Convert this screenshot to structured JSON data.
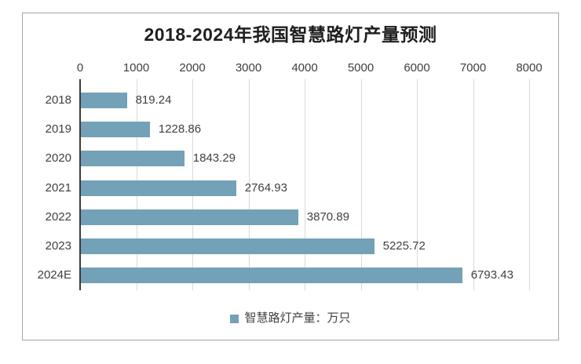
{
  "chart_data": {
    "type": "bar",
    "orientation": "horizontal",
    "title": "2018-2024年我国智慧路灯产量预测",
    "categories": [
      "2018",
      "2019",
      "2020",
      "2021",
      "2022",
      "2023",
      "2024E"
    ],
    "values": [
      819.24,
      1228.86,
      1843.29,
      2764.93,
      3870.89,
      5225.72,
      6793.43
    ],
    "value_labels": [
      "819.24",
      "1228.86",
      "1843.29",
      "2764.93",
      "3870.89",
      "5225.72",
      "6793.43"
    ],
    "xlabel": "",
    "ylabel": "",
    "xlim": [
      0,
      8000
    ],
    "x_ticks": [
      0,
      1000,
      2000,
      3000,
      4000,
      5000,
      6000,
      7000,
      8000
    ],
    "axis_position": "top",
    "grid": true,
    "data_labels": true,
    "legend": {
      "position": "bottom",
      "entries": [
        "智慧路灯产量：万只"
      ]
    },
    "colors": {
      "bar": "#73A1B7",
      "grid": "#D9D9D9",
      "axis": "#3B3B3B",
      "text": "#404040",
      "title": "#1F1F1F",
      "frame_border": "#A4A4A4",
      "background": "#FFFFFF"
    }
  }
}
